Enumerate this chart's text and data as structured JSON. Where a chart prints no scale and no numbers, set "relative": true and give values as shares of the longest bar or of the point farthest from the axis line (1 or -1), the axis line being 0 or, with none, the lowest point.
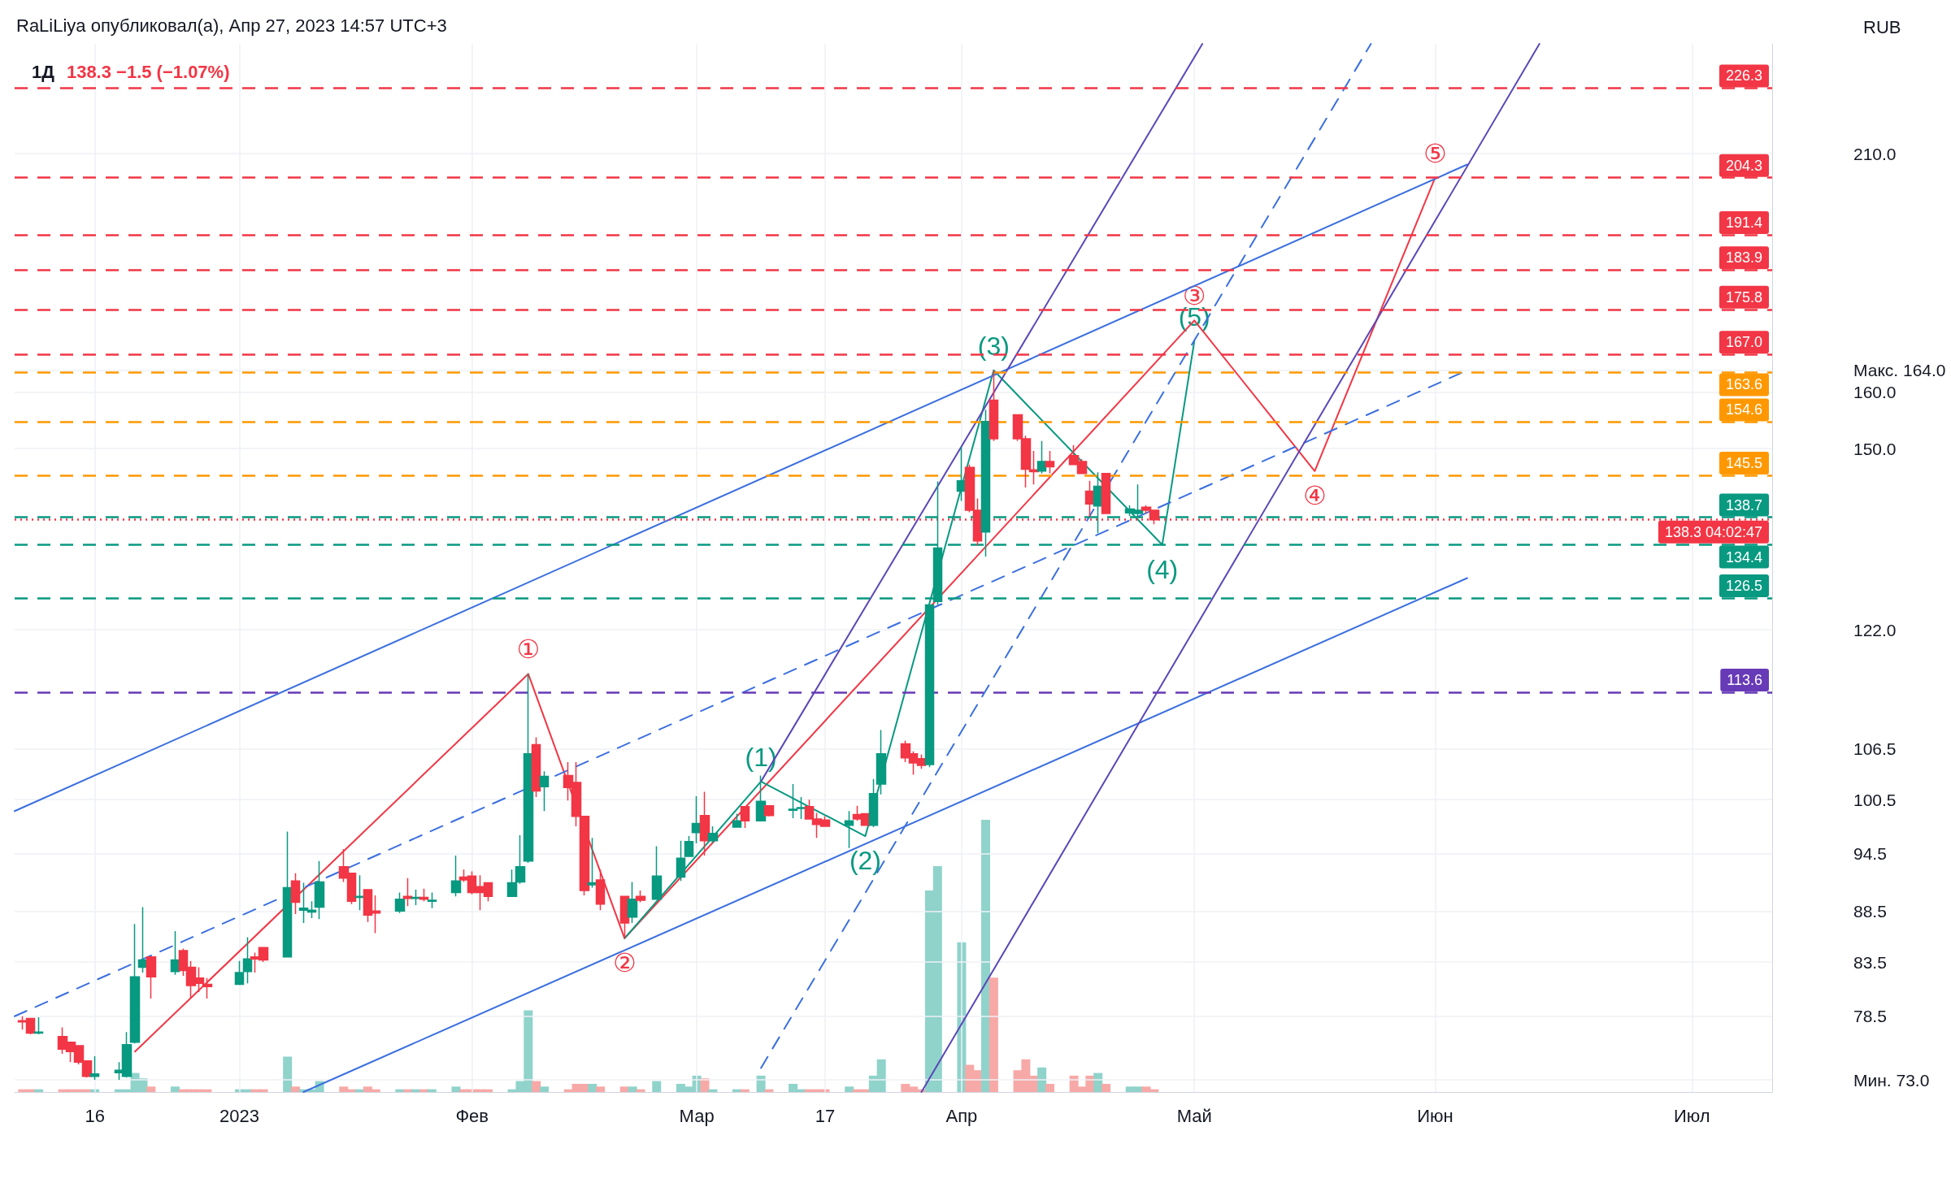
{
  "chart_data": [
    {
      "type": "candlestick",
      "title": "1Д",
      "subtitle": "138.3 −1.5 (−1.07%)",
      "ylabel": "RUB",
      "annotations": [
        "RaLiLiya опубликовал(а), Апр 27, 2023 14:57 UTC+3",
        {
          "text": "①",
          "x": "2023-02-08",
          "y": 116.0
        },
        {
          "text": "②",
          "x": "2023-02-20",
          "y": 85.8
        },
        {
          "text": "③",
          "x": "2023-05-02",
          "y": 173.6
        },
        {
          "text": "④",
          "x": "2023-05-17",
          "y": 146.2
        },
        {
          "text": "⑤",
          "x": "2023-06-01",
          "y": 204.3
        },
        {
          "text": "(1)",
          "x": "2023-03-09",
          "y": 102.6
        },
        {
          "text": "(2)",
          "x": "2023-03-22",
          "y": 96.4
        },
        {
          "text": "(3)",
          "x": "2023-04-07",
          "y": 164.0
        },
        {
          "text": "(4)",
          "x": "2023-04-28",
          "y": 134.4
        },
        {
          "text": "(5)",
          "x": "2023-05-02",
          "y": 169.6
        }
      ],
      "x": [
        "2022-12-07",
        "2022-12-08",
        "2022-12-09",
        "2022-12-12",
        "2022-12-13",
        "2022-12-14",
        "2022-12-15",
        "2022-12-16",
        "2022-12-19",
        "2022-12-20",
        "2022-12-21",
        "2022-12-22",
        "2022-12-23",
        "2022-12-26",
        "2022-12-27",
        "2022-12-28",
        "2022-12-29",
        "2022-12-30",
        "2023-01-03",
        "2023-01-04",
        "2023-01-05",
        "2023-01-06",
        "2023-01-09",
        "2023-01-10",
        "2023-01-11",
        "2023-01-12",
        "2023-01-13",
        "2023-01-16",
        "2023-01-17",
        "2023-01-18",
        "2023-01-19",
        "2023-01-20",
        "2023-01-23",
        "2023-01-24",
        "2023-01-25",
        "2023-01-26",
        "2023-01-27",
        "2023-01-30",
        "2023-01-31",
        "2023-02-01",
        "2023-02-02",
        "2023-02-03",
        "2023-02-06",
        "2023-02-07",
        "2023-02-08",
        "2023-02-09",
        "2023-02-10",
        "2023-02-13",
        "2023-02-14",
        "2023-02-15",
        "2023-02-16",
        "2023-02-17",
        "2023-02-20",
        "2023-02-21",
        "2023-02-22",
        "2023-02-24",
        "2023-02-27",
        "2023-02-28",
        "2023-03-01",
        "2023-03-02",
        "2023-03-03",
        "2023-03-06",
        "2023-03-07",
        "2023-03-09",
        "2023-03-10",
        "2023-03-13",
        "2023-03-14",
        "2023-03-15",
        "2023-03-16",
        "2023-03-17",
        "2023-03-20",
        "2023-03-21",
        "2023-03-22",
        "2023-03-23",
        "2023-03-24",
        "2023-03-27",
        "2023-03-28",
        "2023-03-29",
        "2023-03-30",
        "2023-03-31",
        "2023-04-03",
        "2023-04-04",
        "2023-04-05",
        "2023-04-06",
        "2023-04-07",
        "2023-04-10",
        "2023-04-11",
        "2023-04-12",
        "2023-04-13",
        "2023-04-14",
        "2023-04-17",
        "2023-04-18",
        "2023-04-19",
        "2023-04-20",
        "2023-04-21",
        "2023-04-24",
        "2023-04-25",
        "2023-04-26",
        "2023-04-27"
      ],
      "ohlc": [
        [
          78.1,
          78.5,
          77.3,
          78.0
        ],
        [
          78.3,
          78.3,
          76.9,
          77.0
        ],
        [
          77.0,
          78.4,
          76.9,
          77.1
        ],
        [
          76.7,
          77.5,
          75.2,
          75.6
        ],
        [
          76.2,
          76.2,
          74.5,
          75.4
        ],
        [
          75.9,
          75.9,
          74.3,
          74.5
        ],
        [
          74.6,
          74.6,
          73.2,
          73.3
        ],
        [
          73.3,
          75.0,
          73.0,
          73.5
        ],
        [
          73.6,
          74.5,
          73.0,
          73.8
        ],
        [
          73.3,
          77.1,
          73.2,
          76.0
        ],
        [
          76.2,
          87.2,
          76.1,
          82.1
        ],
        [
          83.0,
          88.9,
          82.5,
          83.7
        ],
        [
          84.0,
          84.0,
          80.1,
          82.1
        ],
        [
          82.6,
          86.5,
          82.3,
          83.7
        ],
        [
          84.6,
          84.8,
          82.2,
          82.7
        ],
        [
          83.0,
          83.6,
          80.1,
          81.3
        ],
        [
          82.0,
          83.0,
          80.7,
          81.5
        ],
        [
          81.4,
          82.0,
          80.1,
          81.2
        ],
        [
          81.4,
          83.6,
          81.4,
          82.5
        ],
        [
          82.6,
          85.9,
          81.5,
          83.8
        ],
        [
          84.0,
          84.4,
          82.5,
          83.8
        ],
        [
          84.9,
          84.9,
          83.5,
          83.7
        ],
        [
          84.0,
          96.9,
          84.0,
          90.9
        ],
        [
          91.6,
          92.4,
          88.2,
          89.4
        ],
        [
          88.6,
          91.4,
          87.3,
          88.8
        ],
        [
          88.4,
          89.5,
          87.8,
          88.6
        ],
        [
          88.9,
          93.7,
          87.7,
          91.5
        ],
        [
          93.1,
          95.0,
          91.5,
          91.9
        ],
        [
          92.4,
          92.4,
          89.2,
          89.5
        ],
        [
          89.9,
          92.2,
          88.6,
          90.0
        ],
        [
          90.7,
          90.7,
          87.4,
          88.1
        ],
        [
          88.5,
          90.1,
          86.3,
          88.3
        ],
        [
          88.5,
          90.4,
          88.3,
          89.7
        ],
        [
          90.0,
          91.9,
          89.0,
          89.8
        ],
        [
          89.8,
          90.7,
          89.1,
          89.9
        ],
        [
          89.9,
          90.8,
          89.5,
          89.7
        ],
        [
          89.5,
          90.4,
          88.8,
          89.6
        ],
        [
          90.4,
          94.3,
          90.0,
          91.6
        ],
        [
          92.0,
          92.8,
          91.5,
          91.7
        ],
        [
          92.1,
          92.6,
          90.2,
          90.4
        ],
        [
          91.0,
          92.2,
          88.6,
          90.4
        ],
        [
          91.4,
          91.4,
          89.5,
          90.0
        ],
        [
          90.0,
          92.8,
          90.0,
          91.4
        ],
        [
          91.5,
          96.5,
          91.3,
          93.1
        ],
        [
          93.7,
          116.0,
          93.5,
          105.9
        ],
        [
          107.0,
          107.9,
          100.8,
          101.5
        ],
        [
          102.0,
          103.8,
          99.2,
          103.2
        ],
        [
          103.3,
          104.9,
          100.4,
          101.9
        ],
        [
          102.5,
          104.9,
          97.5,
          98.6
        ],
        [
          98.6,
          98.6,
          90.1,
          90.6
        ],
        [
          91.2,
          96.2,
          90.9,
          91.4
        ],
        [
          91.7,
          92.8,
          88.6,
          89.2
        ],
        [
          90.0,
          90.0,
          85.8,
          87.3
        ],
        [
          87.9,
          91.5,
          87.3,
          89.7
        ],
        [
          90.0,
          90.6,
          89.4,
          89.6
        ],
        [
          89.7,
          95.3,
          89.7,
          92.1
        ],
        [
          92.0,
          95.9,
          91.6,
          94.0
        ],
        [
          94.2,
          96.4,
          94.2,
          95.8
        ],
        [
          96.8,
          100.9,
          95.6,
          97.8
        ],
        [
          98.7,
          101.4,
          94.3,
          95.9
        ],
        [
          95.9,
          97.5,
          95.6,
          96.7
        ],
        [
          97.4,
          98.9,
          97.4,
          98.1
        ],
        [
          99.7,
          99.7,
          97.3,
          98.1
        ],
        [
          98.1,
          103.3,
          98.1,
          100.3
        ],
        [
          99.8,
          99.8,
          98.6,
          98.7
        ],
        [
          99.3,
          102.3,
          98.4,
          99.4
        ],
        [
          99.5,
          100.8,
          98.3,
          99.6
        ],
        [
          99.7,
          100.5,
          98.3,
          98.3
        ],
        [
          98.3,
          99.0,
          96.2,
          97.7
        ],
        [
          98.2,
          98.6,
          97.5,
          97.5
        ],
        [
          97.6,
          99.2,
          95.1,
          98.1
        ],
        [
          98.8,
          99.8,
          98.1,
          98.3
        ],
        [
          98.9,
          98.9,
          97.6,
          97.6
        ],
        [
          97.6,
          102.9,
          97.4,
          101.2
        ],
        [
          102.3,
          108.8,
          101.1,
          105.9
        ],
        [
          107.1,
          107.5,
          104.9,
          105.4
        ],
        [
          105.9,
          106.2,
          103.4,
          104.8
        ],
        [
          105.3,
          105.8,
          104.1,
          104.5
        ],
        [
          104.6,
          125.5,
          104.3,
          125.5
        ],
        [
          126.0,
          144.5,
          125.5,
          133.9
        ],
        [
          142.9,
          150.3,
          141.3,
          144.6
        ],
        [
          146.8,
          147.3,
          139.5,
          139.8
        ],
        [
          139.8,
          141.7,
          134.3,
          135.0
        ],
        [
          136.4,
          156.8,
          132.6,
          154.7
        ],
        [
          158.5,
          164.0,
          151.3,
          151.7
        ],
        [
          155.9,
          155.9,
          151.3,
          151.7
        ],
        [
          151.7,
          152.2,
          143.5,
          146.5
        ],
        [
          146.4,
          149.6,
          144.0,
          146.1
        ],
        [
          146.2,
          151.3,
          145.8,
          147.8
        ],
        [
          147.8,
          149.6,
          145.8,
          146.9
        ],
        [
          148.8,
          150.6,
          147.3,
          147.3
        ],
        [
          147.8,
          148.2,
          145.8,
          145.8
        ],
        [
          142.9,
          144.6,
          138.7,
          140.8
        ],
        [
          140.5,
          146.0,
          136.2,
          143.7
        ],
        [
          145.8,
          145.8,
          139.3,
          139.3
        ],
        [
          139.4,
          140.6,
          138.9,
          140.0
        ],
        [
          139.3,
          144.0,
          138.7,
          139.8
        ],
        [
          140.3,
          140.6,
          139.3,
          139.8
        ],
        [
          139.8,
          139.8,
          137.6,
          138.3
        ]
      ],
      "colors": [
        "#f23645",
        "#f23645",
        "#089981",
        "#f23645",
        "#f23645",
        "#f23645",
        "#f23645",
        "#089981",
        "#089981",
        "#089981",
        "#089981",
        "#089981",
        "#f23645",
        "#089981",
        "#f23645",
        "#f23645",
        "#f23645",
        "#f23645",
        "#089981",
        "#089981",
        "#f23645",
        "#f23645",
        "#089981",
        "#f23645",
        "#089981",
        "#089981",
        "#089981",
        "#f23645",
        "#f23645",
        "#089981",
        "#f23645",
        "#f23645",
        "#089981",
        "#f23645",
        "#089981",
        "#f23645",
        "#089981",
        "#089981",
        "#f23645",
        "#f23645",
        "#f23645",
        "#f23645",
        "#089981",
        "#089981",
        "#089981",
        "#f23645",
        "#089981",
        "#f23645",
        "#f23645",
        "#f23645",
        "#089981",
        "#f23645",
        "#f23645",
        "#089981",
        "#f23645",
        "#089981",
        "#089981",
        "#089981",
        "#089981",
        "#f23645",
        "#089981",
        "#089981",
        "#f23645",
        "#089981",
        "#f23645",
        "#089981",
        "#089981",
        "#f23645",
        "#f23645",
        "#f23645",
        "#089981",
        "#f23645",
        "#f23645",
        "#089981",
        "#089981",
        "#f23645",
        "#f23645",
        "#f23645",
        "#089981",
        "#089981",
        "#089981",
        "#f23645",
        "#f23645",
        "#089981",
        "#f23645",
        "#f23645",
        "#f23645",
        "#f23645",
        "#089981",
        "#f23645",
        "#f23645",
        "#f23645",
        "#f23645",
        "#089981",
        "#f23645",
        "#089981",
        "#089981",
        "#f23645",
        "#f23645"
      ],
      "series": [
        {
          "type": "line",
          "color": "#f23645",
          "x": [
            "2022-12-21",
            "2023-02-08",
            "2023-02-20",
            "2023-05-02",
            "2023-05-17",
            "2023-06-01"
          ],
          "values": [
            75.4,
            116.0,
            85.8,
            173.6,
            146.2,
            204.3
          ]
        },
        {
          "type": "line",
          "color": "#089981",
          "x": [
            "2023-02-20",
            "2023-03-09",
            "2023-03-22",
            "2023-04-07",
            "2023-04-28",
            "2023-05-02"
          ],
          "values": [
            85.8,
            102.6,
            96.4,
            164.0,
            134.4,
            169.6
          ]
        },
        {
          "type": "line",
          "color": "#3b6fe0",
          "x": [
            "2022-12-06",
            "2023-06-05"
          ],
          "values": [
            99.2,
            207.4
          ]
        },
        {
          "type": "line",
          "color": "#3b6fe0",
          "x": [
            "2023-01-11",
            "2023-06-05"
          ],
          "values": [
            72,
            129.4
          ]
        },
        {
          "type": "line",
          "color": "#3b6fe0",
          "line_style": "dashed",
          "x": [
            "2022-12-06",
            "2023-06-05"
          ],
          "values": [
            78.5,
            164.0
          ]
        },
        {
          "type": "line",
          "color": "#5b46b8",
          "x": [
            "2023-03-09",
            "2023-05-03"
          ],
          "values": [
            102.6,
            238
          ]
        },
        {
          "type": "line",
          "color": "#5b46b8",
          "x": [
            "2023-03-29",
            "2023-06-14"
          ],
          "values": [
            72,
            238
          ]
        },
        {
          "type": "line",
          "color": "#3b6fe0",
          "line_style": "dashed",
          "x": [
            "2023-03-09",
            "2023-05-24"
          ],
          "values": [
            74.0,
            238
          ]
        }
      ],
      "ref_lines": [
        {
          "axis": "y",
          "value": 226.3,
          "label": "226.3",
          "color": "#f23645",
          "line_style": "dashed"
        },
        {
          "axis": "y",
          "value": 204.3,
          "label": "204.3",
          "color": "#f23645",
          "line_style": "dashed"
        },
        {
          "axis": "y",
          "value": 191.4,
          "label": "191.4",
          "color": "#f23645",
          "line_style": "dashed"
        },
        {
          "axis": "y",
          "value": 183.9,
          "label": "183.9",
          "color": "#f23645",
          "line_style": "dashed"
        },
        {
          "axis": "y",
          "value": 175.8,
          "label": "175.8",
          "color": "#f23645",
          "line_style": "dashed"
        },
        {
          "axis": "y",
          "value": 167.0,
          "label": "167.0",
          "color": "#f23645",
          "line_style": "dashed"
        },
        {
          "axis": "y",
          "value": 163.6,
          "label": "163.6",
          "color": "#ff9800",
          "line_style": "dashed"
        },
        {
          "axis": "y",
          "value": 154.6,
          "label": "154.6",
          "color": "#ff9800",
          "line_style": "dashed"
        },
        {
          "axis": "y",
          "value": 145.5,
          "label": "145.5",
          "color": "#ff9800",
          "line_style": "dashed"
        },
        {
          "axis": "y",
          "value": 138.7,
          "label": "138.7",
          "color": "#089981",
          "line_style": "dashed"
        },
        {
          "axis": "y",
          "value": 138.3,
          "label": "138.3 04:02:47",
          "color": "#f23645",
          "line_style": "dotted"
        },
        {
          "axis": "y",
          "value": 134.4,
          "label": "134.4",
          "color": "#089981",
          "line_style": "dashed"
        },
        {
          "axis": "y",
          "value": 126.5,
          "label": "126.5",
          "color": "#089981",
          "line_style": "dashed"
        },
        {
          "axis": "y",
          "value": 113.6,
          "label": "113.6",
          "color": "#673ab7",
          "line_style": "dashed"
        }
      ],
      "xlim": [
        "2022-12-06",
        "2023-07-13"
      ],
      "xticks": [
        {
          "value": "2022-12-16",
          "label": "16"
        },
        {
          "value": "2023-01-03",
          "label": "2023"
        },
        {
          "value": "2023-02-01",
          "label": "Фев"
        },
        {
          "value": "2023-03-01",
          "label": "Мар"
        },
        {
          "value": "2023-03-17",
          "label": "17"
        },
        {
          "value": "2023-04-03",
          "label": "Апр"
        },
        {
          "value": "2023-05-02",
          "label": "Май"
        },
        {
          "value": "2023-06-01",
          "label": "Июн"
        },
        {
          "value": "2023-07-03",
          "label": "Июл"
        }
      ],
      "ylim": [
        72,
        238
      ],
      "yticks": [
        {
          "value": 73,
          "label": "Мин. 73.0"
        },
        78.5,
        83.5,
        88.5,
        94.5,
        100.5,
        106.5,
        {
          "value": 122,
          "label": "122.0"
        },
        {
          "value": 150,
          "label": "150.0"
        },
        {
          "value": 160,
          "label": "160.0"
        },
        {
          "value": 164,
          "label": "Макс. 164.0"
        },
        {
          "value": 210,
          "label": "210.0"
        }
      ],
      "log": "y",
      "grid": true,
      "marker": "none"
    },
    {
      "type": "bar",
      "relative": true,
      "xlim": [
        "2022-12-06",
        "2023-07-13"
      ],
      "x": [
        "2022-12-07",
        "2022-12-08",
        "2022-12-09",
        "2022-12-12",
        "2022-12-13",
        "2022-12-14",
        "2022-12-15",
        "2022-12-16",
        "2022-12-19",
        "2022-12-20",
        "2022-12-21",
        "2022-12-22",
        "2022-12-23",
        "2022-12-26",
        "2022-12-27",
        "2022-12-28",
        "2022-12-29",
        "2022-12-30",
        "2023-01-03",
        "2023-01-04",
        "2023-01-05",
        "2023-01-06",
        "2023-01-09",
        "2023-01-10",
        "2023-01-11",
        "2023-01-12",
        "2023-01-13",
        "2023-01-16",
        "2023-01-17",
        "2023-01-18",
        "2023-01-19",
        "2023-01-20",
        "2023-01-23",
        "2023-01-24",
        "2023-01-25",
        "2023-01-26",
        "2023-01-27",
        "2023-01-30",
        "2023-01-31",
        "2023-02-01",
        "2023-02-02",
        "2023-02-03",
        "2023-02-06",
        "2023-02-07",
        "2023-02-08",
        "2023-02-09",
        "2023-02-10",
        "2023-02-13",
        "2023-02-14",
        "2023-02-15",
        "2023-02-16",
        "2023-02-17",
        "2023-02-20",
        "2023-02-21",
        "2023-02-22",
        "2023-02-24",
        "2023-02-27",
        "2023-02-28",
        "2023-03-01",
        "2023-03-02",
        "2023-03-03",
        "2023-03-06",
        "2023-03-07",
        "2023-03-09",
        "2023-03-10",
        "2023-03-13",
        "2023-03-14",
        "2023-03-15",
        "2023-03-16",
        "2023-03-17",
        "2023-03-20",
        "2023-03-21",
        "2023-03-22",
        "2023-03-23",
        "2023-03-24",
        "2023-03-27",
        "2023-03-28",
        "2023-03-29",
        "2023-03-30",
        "2023-03-31",
        "2023-04-03",
        "2023-04-04",
        "2023-04-05",
        "2023-04-06",
        "2023-04-07",
        "2023-04-10",
        "2023-04-11",
        "2023-04-12",
        "2023-04-13",
        "2023-04-14",
        "2023-04-17",
        "2023-04-18",
        "2023-04-19",
        "2023-04-20",
        "2023-04-21",
        "2023-04-24",
        "2023-04-25",
        "2023-04-26",
        "2023-04-27"
      ],
      "values": [
        0.01,
        0.01,
        0.01,
        0.01,
        0.01,
        0.01,
        0.01,
        0.01,
        0.01,
        0.01,
        0.07,
        0.05,
        0.02,
        0.02,
        0.01,
        0.01,
        0.01,
        0.01,
        0.01,
        0.01,
        0.01,
        0.01,
        0.13,
        0.02,
        0.01,
        0.01,
        0.04,
        0.02,
        0.01,
        0.01,
        0.02,
        0.01,
        0.01,
        0.01,
        0.01,
        0.01,
        0.01,
        0.02,
        0.01,
        0.01,
        0.01,
        0.01,
        0.01,
        0.04,
        0.3,
        0.04,
        0.02,
        0.01,
        0.03,
        0.03,
        0.03,
        0.02,
        0.02,
        0.02,
        0.01,
        0.04,
        0.03,
        0.02,
        0.06,
        0.05,
        0.01,
        0.01,
        0.01,
        0.06,
        0.01,
        0.03,
        0.01,
        0.01,
        0.01,
        0.01,
        0.02,
        0.01,
        0.01,
        0.06,
        0.12,
        0.03,
        0.02,
        0.01,
        0.74,
        0.83,
        0.55,
        0.1,
        0.08,
        1,
        0.42,
        0.08,
        0.12,
        0.06,
        0.09,
        0.03,
        0.06,
        0.02,
        0.06,
        0.07,
        0.03,
        0.02,
        0.02,
        0.02,
        0.01
      ],
      "colors": [
        "#f7a9a7",
        "#f7a9a7",
        "#8fd3cb",
        "#f7a9a7",
        "#f7a9a7",
        "#f7a9a7",
        "#f7a9a7",
        "#8fd3cb",
        "#8fd3cb",
        "#8fd3cb",
        "#8fd3cb",
        "#8fd3cb",
        "#f7a9a7",
        "#8fd3cb",
        "#f7a9a7",
        "#f7a9a7",
        "#f7a9a7",
        "#f7a9a7",
        "#8fd3cb",
        "#8fd3cb",
        "#f7a9a7",
        "#f7a9a7",
        "#8fd3cb",
        "#f7a9a7",
        "#8fd3cb",
        "#8fd3cb",
        "#8fd3cb",
        "#f7a9a7",
        "#f7a9a7",
        "#8fd3cb",
        "#f7a9a7",
        "#f7a9a7",
        "#8fd3cb",
        "#f7a9a7",
        "#8fd3cb",
        "#f7a9a7",
        "#8fd3cb",
        "#8fd3cb",
        "#f7a9a7",
        "#f7a9a7",
        "#f7a9a7",
        "#f7a9a7",
        "#8fd3cb",
        "#8fd3cb",
        "#8fd3cb",
        "#f7a9a7",
        "#8fd3cb",
        "#f7a9a7",
        "#f7a9a7",
        "#f7a9a7",
        "#8fd3cb",
        "#f7a9a7",
        "#f7a9a7",
        "#8fd3cb",
        "#f7a9a7",
        "#8fd3cb",
        "#8fd3cb",
        "#8fd3cb",
        "#8fd3cb",
        "#f7a9a7",
        "#8fd3cb",
        "#8fd3cb",
        "#f7a9a7",
        "#8fd3cb",
        "#f7a9a7",
        "#8fd3cb",
        "#8fd3cb",
        "#f7a9a7",
        "#f7a9a7",
        "#f7a9a7",
        "#8fd3cb",
        "#f7a9a7",
        "#f7a9a7",
        "#8fd3cb",
        "#8fd3cb",
        "#f7a9a7",
        "#f7a9a7",
        "#f7a9a7",
        "#8fd3cb",
        "#8fd3cb",
        "#8fd3cb",
        "#f7a9a7",
        "#f7a9a7",
        "#8fd3cb",
        "#f7a9a7",
        "#f7a9a7",
        "#f7a9a7",
        "#f7a9a7",
        "#8fd3cb",
        "#f7a9a7",
        "#f7a9a7",
        "#f7a9a7",
        "#f7a9a7",
        "#8fd3cb",
        "#f7a9a7",
        "#8fd3cb",
        "#8fd3cb",
        "#f7a9a7",
        "#f7a9a7"
      ]
    }
  ]
}
